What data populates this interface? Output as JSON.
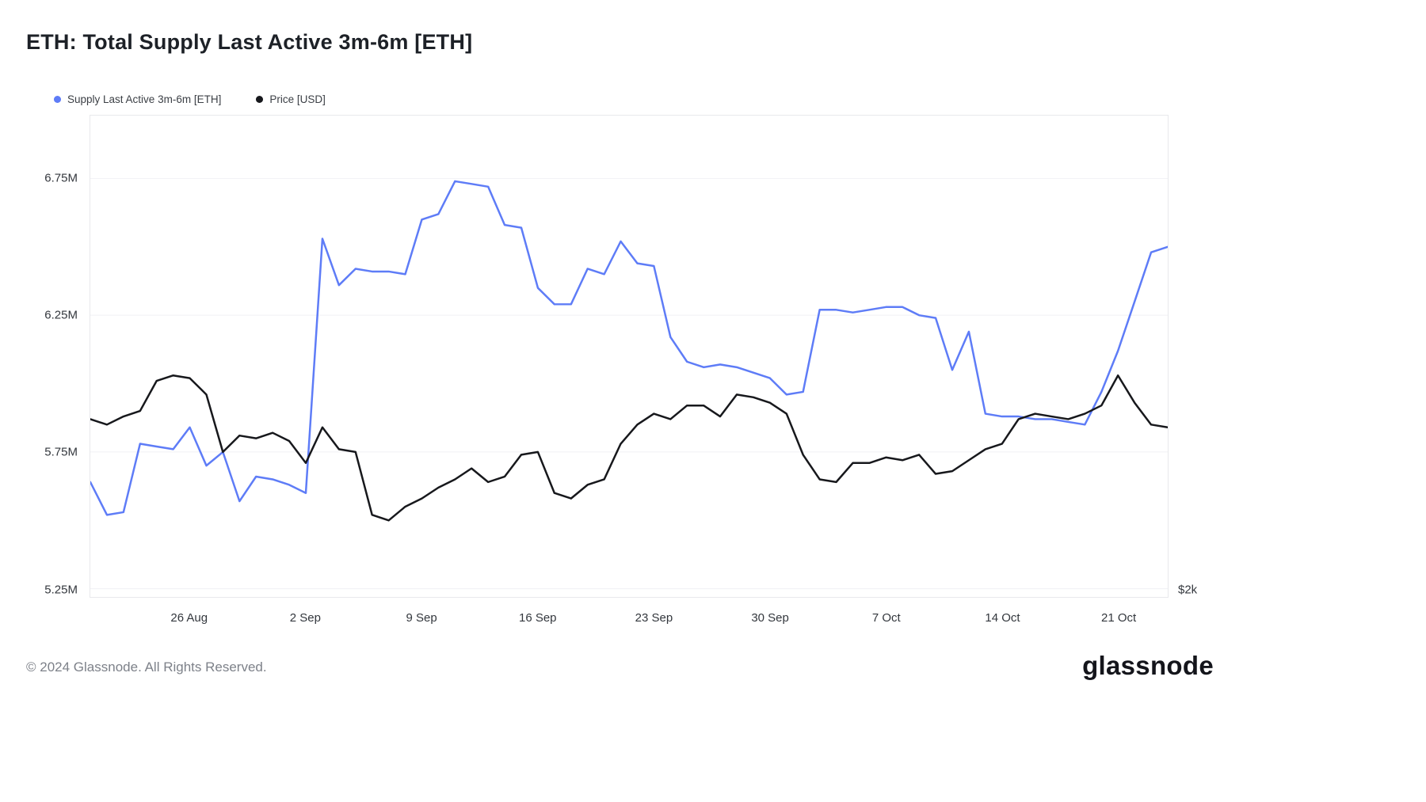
{
  "title": "ETH: Total Supply Last Active 3m-6m [ETH]",
  "footer": {
    "copyright": "© 2024 Glassnode. All Rights Reserved.",
    "brand": "glassnode"
  },
  "chart_data": {
    "type": "line",
    "title": "ETH: Total Supply Last Active 3m-6m [ETH]",
    "grid": "horizontal",
    "legend_position": "top-left",
    "x": [
      "20 Aug",
      "21 Aug",
      "22 Aug",
      "23 Aug",
      "24 Aug",
      "25 Aug",
      "26 Aug",
      "27 Aug",
      "28 Aug",
      "29 Aug",
      "30 Aug",
      "31 Aug",
      "1 Sep",
      "2 Sep",
      "3 Sep",
      "4 Sep",
      "5 Sep",
      "6 Sep",
      "7 Sep",
      "8 Sep",
      "9 Sep",
      "10 Sep",
      "11 Sep",
      "12 Sep",
      "13 Sep",
      "14 Sep",
      "15 Sep",
      "16 Sep",
      "17 Sep",
      "18 Sep",
      "19 Sep",
      "20 Sep",
      "21 Sep",
      "22 Sep",
      "23 Sep",
      "24 Sep",
      "25 Sep",
      "26 Sep",
      "27 Sep",
      "28 Sep",
      "29 Sep",
      "30 Sep",
      "1 Oct",
      "2 Oct",
      "3 Oct",
      "4 Oct",
      "5 Oct",
      "6 Oct",
      "7 Oct",
      "8 Oct",
      "9 Oct",
      "10 Oct",
      "11 Oct",
      "12 Oct",
      "13 Oct",
      "14 Oct",
      "15 Oct",
      "16 Oct",
      "17 Oct",
      "18 Oct",
      "19 Oct",
      "20 Oct",
      "21 Oct",
      "22 Oct",
      "23 Oct",
      "24 Oct"
    ],
    "series": [
      {
        "name": "Supply Last Active 3m-6m [ETH]",
        "color": "#5e7cf7",
        "axis": "left",
        "unit": "M ETH",
        "values": [
          5.64,
          5.52,
          5.53,
          5.78,
          5.77,
          5.76,
          5.84,
          5.7,
          5.75,
          5.57,
          5.66,
          5.65,
          5.63,
          5.6,
          6.53,
          6.36,
          6.42,
          6.41,
          6.41,
          6.4,
          6.6,
          6.62,
          6.74,
          6.73,
          6.72,
          6.58,
          6.57,
          6.35,
          6.29,
          6.29,
          6.42,
          6.4,
          6.52,
          6.44,
          6.43,
          6.17,
          6.08,
          6.06,
          6.07,
          6.06,
          6.04,
          6.02,
          5.96,
          5.97,
          6.27,
          6.27,
          6.26,
          6.27,
          6.28,
          6.28,
          6.25,
          6.24,
          6.05,
          6.19,
          5.89,
          5.88,
          5.88,
          5.87,
          5.87,
          5.86,
          5.85,
          5.97,
          6.12,
          6.3,
          6.48,
          6.5
        ]
      },
      {
        "name": "Price [USD]",
        "color": "#17181c",
        "axis": "right",
        "unit": "k USD",
        "values": [
          2.62,
          2.6,
          2.63,
          2.65,
          2.76,
          2.78,
          2.77,
          2.71,
          2.5,
          2.56,
          2.55,
          2.57,
          2.54,
          2.46,
          2.59,
          2.51,
          2.5,
          2.27,
          2.25,
          2.3,
          2.33,
          2.37,
          2.4,
          2.44,
          2.39,
          2.41,
          2.49,
          2.5,
          2.35,
          2.33,
          2.38,
          2.4,
          2.53,
          2.6,
          2.64,
          2.62,
          2.67,
          2.67,
          2.63,
          2.71,
          2.7,
          2.68,
          2.64,
          2.49,
          2.4,
          2.39,
          2.46,
          2.46,
          2.48,
          2.47,
          2.49,
          2.42,
          2.43,
          2.47,
          2.51,
          2.53,
          2.62,
          2.64,
          2.63,
          2.62,
          2.64,
          2.67,
          2.78,
          2.68,
          2.6,
          2.59
        ]
      }
    ],
    "left_axis": {
      "ylim": [
        5.22,
        6.98
      ],
      "ticks": [
        {
          "label": "6.75M",
          "value": 6.75
        },
        {
          "label": "6.25M",
          "value": 6.25
        },
        {
          "label": "5.75M",
          "value": 5.75
        },
        {
          "label": "5.25M",
          "value": 5.25
        }
      ]
    },
    "right_axis": {
      "ylim": [
        1.97,
        3.73
      ],
      "ticks": [
        {
          "label": "$2k",
          "value": 2.0
        }
      ]
    },
    "x_ticks": [
      {
        "label": "26 Aug",
        "index": 6
      },
      {
        "label": "2 Sep",
        "index": 13
      },
      {
        "label": "9 Sep",
        "index": 20
      },
      {
        "label": "16 Sep",
        "index": 27
      },
      {
        "label": "23 Sep",
        "index": 34
      },
      {
        "label": "30 Sep",
        "index": 41
      },
      {
        "label": "7 Oct",
        "index": 48
      },
      {
        "label": "14 Oct",
        "index": 55
      },
      {
        "label": "21 Oct",
        "index": 62
      }
    ]
  }
}
